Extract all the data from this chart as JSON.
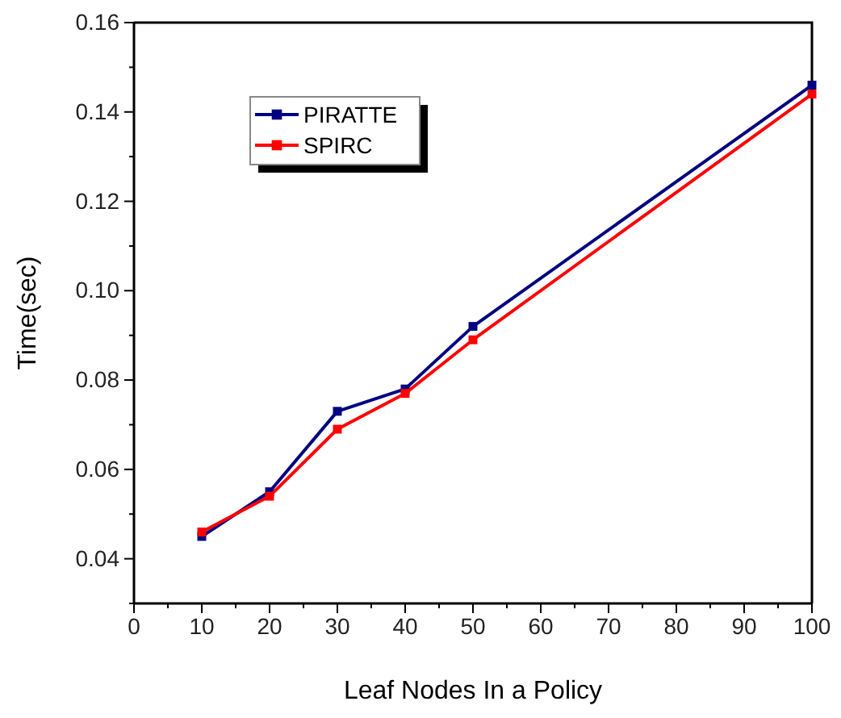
{
  "chart_data": {
    "type": "line",
    "xlabel": "Leaf Nodes In a Policy",
    "ylabel": "Time(sec)",
    "x": [
      10,
      20,
      30,
      40,
      50,
      100
    ],
    "series": [
      {
        "name": "PIRATTE",
        "color": "#000080",
        "values": [
          0.045,
          0.055,
          0.073,
          0.078,
          0.092,
          0.146
        ]
      },
      {
        "name": "SPIRC",
        "color": "#ff0000",
        "values": [
          0.046,
          0.054,
          0.069,
          0.077,
          0.089,
          0.144
        ]
      }
    ],
    "xlim": [
      0,
      100
    ],
    "xticks": [
      0,
      10,
      20,
      30,
      40,
      50,
      60,
      70,
      80,
      90,
      100
    ],
    "ylim": [
      0.03,
      0.16
    ],
    "yticks": [
      {
        "value": 0.04,
        "label": "0.04"
      },
      {
        "value": 0.06,
        "label": "0.06"
      },
      {
        "value": 0.08,
        "label": "0.08"
      },
      {
        "value": 0.1,
        "label": "0.10"
      },
      {
        "value": 0.12,
        "label": "0.12"
      },
      {
        "value": 0.14,
        "label": "0.14"
      },
      {
        "value": 0.16,
        "label": "0.16"
      }
    ],
    "legend": "top left",
    "marker": "square",
    "grid": false
  }
}
